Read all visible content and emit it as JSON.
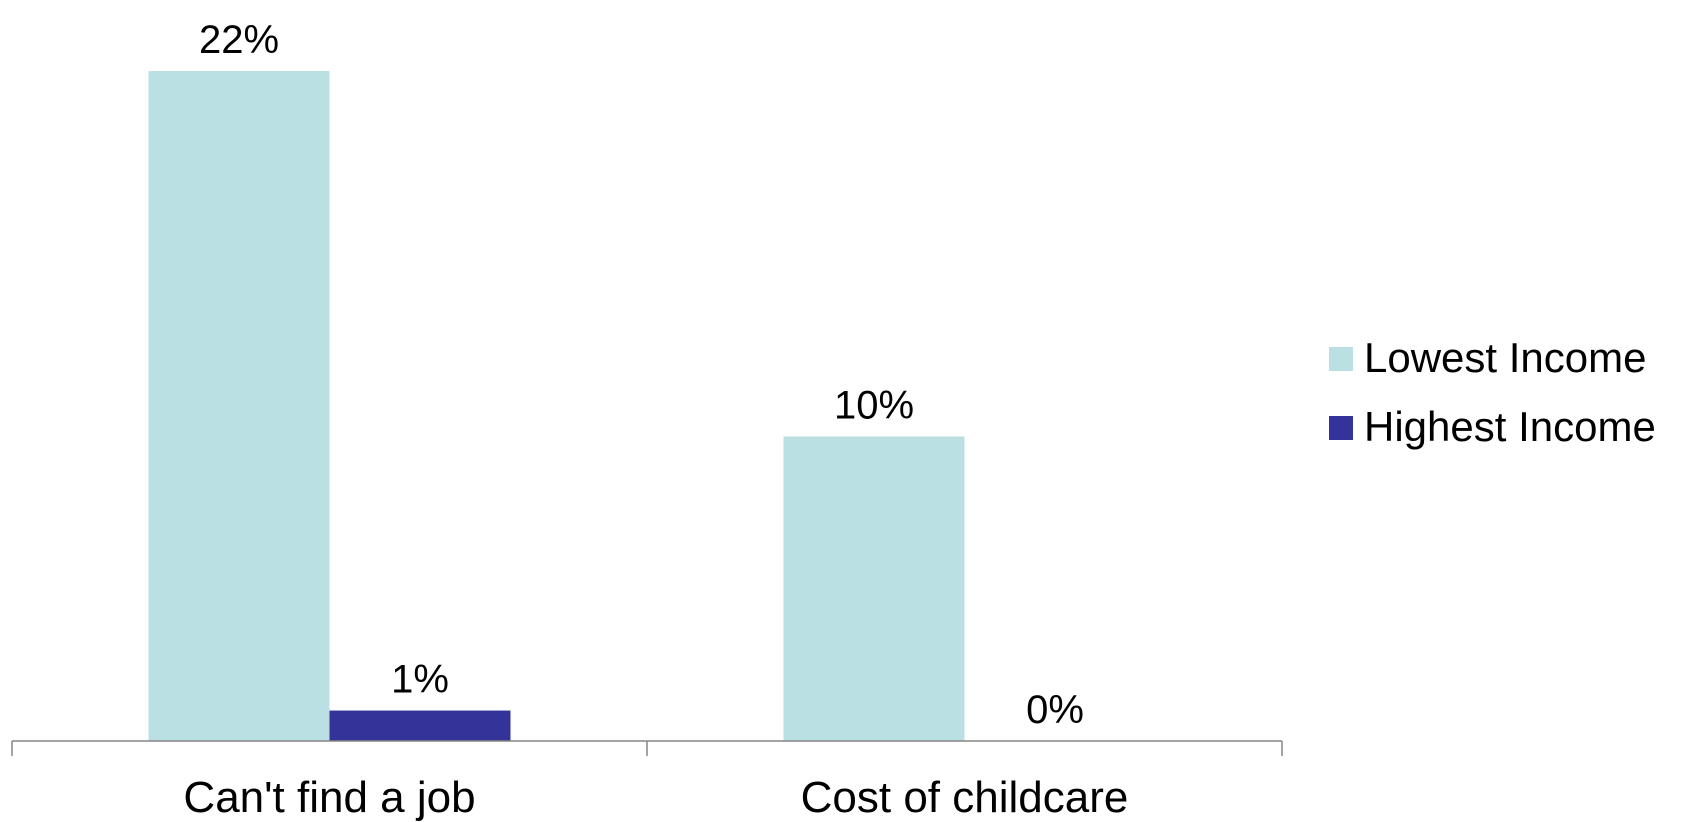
{
  "chart_data": {
    "type": "bar",
    "categories": [
      "Can't find a job",
      "Cost of childcare"
    ],
    "series": [
      {
        "name": "Lowest Income",
        "values": [
          22,
          10
        ],
        "labels": [
          "22%",
          "10%"
        ],
        "color": "#bbe0e3"
      },
      {
        "name": "Highest Income",
        "values": [
          1,
          0
        ],
        "labels": [
          "1%",
          "0%"
        ],
        "color": "#333399"
      }
    ],
    "title": "",
    "xlabel": "",
    "ylabel": "",
    "ylim": [
      0,
      22
    ],
    "grid": false,
    "legend": "right",
    "y_axis_visible": false
  }
}
